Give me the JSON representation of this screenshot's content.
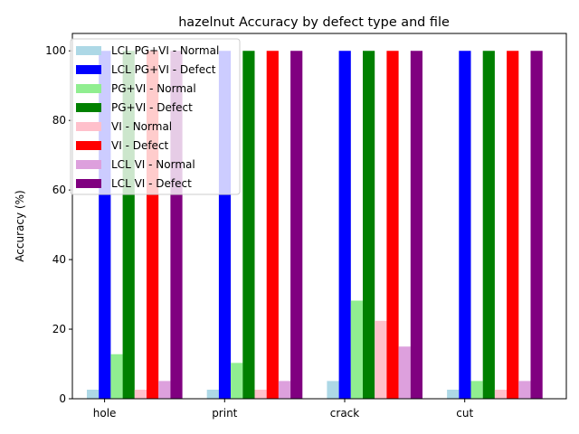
{
  "chart_data": {
    "type": "bar",
    "title": "hazelnut Accuracy by defect type and file",
    "xlabel": "",
    "ylabel": "Accuracy (%)",
    "categories": [
      "hole",
      "print",
      "crack",
      "cut"
    ],
    "ylim": [
      0,
      105
    ],
    "yticks": [
      0,
      20,
      40,
      60,
      80,
      100
    ],
    "grid": false,
    "legend_position": "upper-left",
    "series": [
      {
        "name": "LCL PG+VI - Normal",
        "color": "#add8e6",
        "values": [
          2.6,
          2.6,
          5.1,
          2.6
        ]
      },
      {
        "name": "LCL PG+VI - Defect",
        "color": "#0000ff",
        "values": [
          100,
          100,
          100,
          100
        ]
      },
      {
        "name": "PG+VI - Normal",
        "color": "#90ee90",
        "values": [
          12.8,
          10.3,
          28.2,
          5.1
        ]
      },
      {
        "name": "PG+VI - Defect",
        "color": "#008000",
        "values": [
          100,
          100,
          100,
          100
        ]
      },
      {
        "name": "VI - Normal",
        "color": "#ffc0cb",
        "values": [
          2.6,
          2.6,
          22.4,
          2.6
        ]
      },
      {
        "name": "VI - Defect",
        "color": "#ff0000",
        "values": [
          100,
          100,
          100,
          100
        ]
      },
      {
        "name": "LCL VI - Normal",
        "color": "#dda0dd",
        "values": [
          5.1,
          5.1,
          15.0,
          5.1
        ]
      },
      {
        "name": "LCL VI - Defect",
        "color": "#800080",
        "values": [
          100,
          100,
          100,
          100
        ]
      }
    ]
  }
}
